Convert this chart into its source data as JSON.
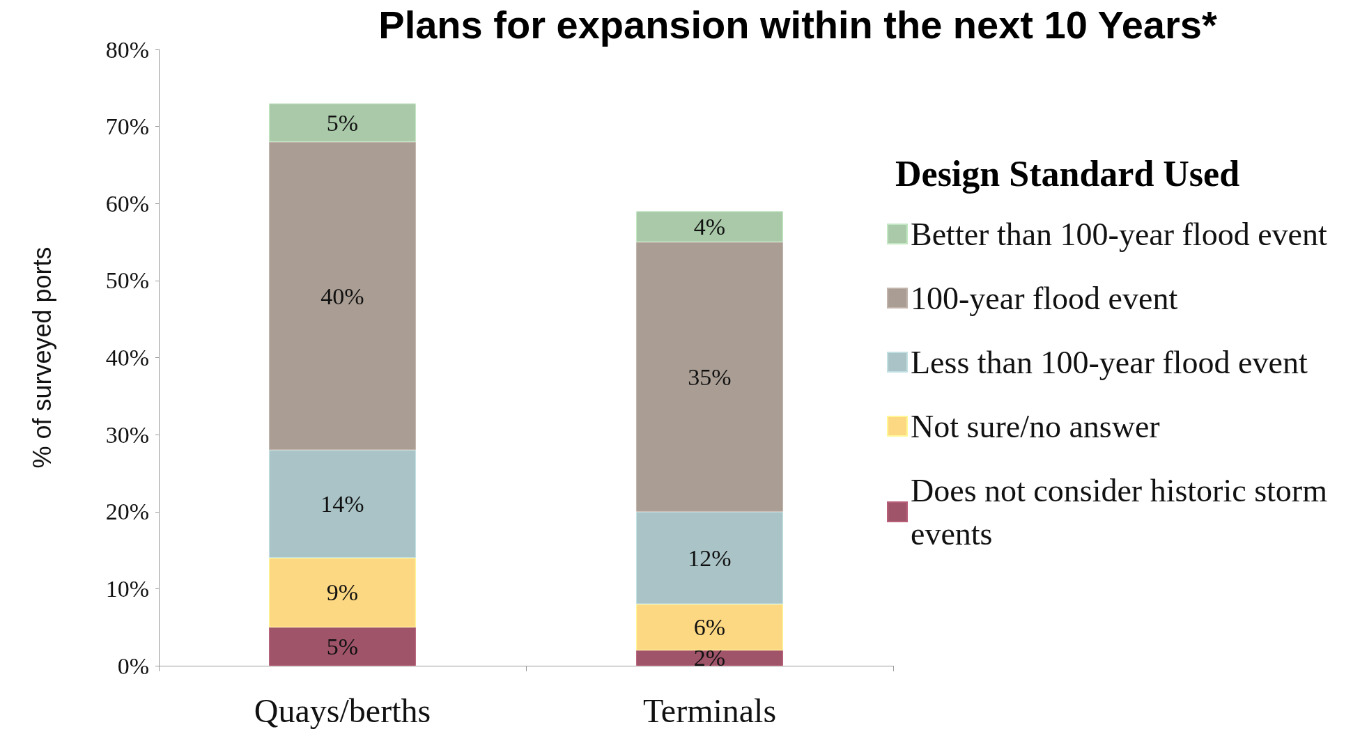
{
  "chart_data": {
    "type": "bar",
    "title": "Plans for expansion within the next 10 Years*",
    "ylabel": "% of surveyed ports",
    "legend_title": "Design Standard Used",
    "categories": [
      "Quays/berths",
      "Terminals"
    ],
    "stacked": true,
    "legend": "right",
    "grid": false,
    "ylim": [
      0,
      80
    ],
    "yticks": [
      {
        "value": 0,
        "label": "0%"
      },
      {
        "value": 10,
        "label": "10%"
      },
      {
        "value": 20,
        "label": "20%"
      },
      {
        "value": 30,
        "label": "30%"
      },
      {
        "value": 40,
        "label": "40%"
      },
      {
        "value": 50,
        "label": "50%"
      },
      {
        "value": 60,
        "label": "60%"
      },
      {
        "value": 70,
        "label": "70%"
      },
      {
        "value": 80,
        "label": "80%"
      }
    ],
    "series": [
      {
        "name": "Does not consider historic storm events",
        "color": "#a0546a",
        "values": [
          5,
          2
        ],
        "value_labels": [
          "5%",
          "2%"
        ]
      },
      {
        "name": "Not sure/no answer",
        "color": "#fdd882",
        "values": [
          9,
          6
        ],
        "value_labels": [
          "9%",
          "6%"
        ]
      },
      {
        "name": "Less than 100-year flood event",
        "color": "#a9c3c6",
        "values": [
          14,
          12
        ],
        "value_labels": [
          "14%",
          "12%"
        ]
      },
      {
        "name": "100-year flood event",
        "color": "#a99d94",
        "values": [
          40,
          35
        ],
        "value_labels": [
          "40%",
          "35%"
        ]
      },
      {
        "name": "Better than 100-year flood event",
        "color": "#a9c9a9",
        "values": [
          5,
          4
        ],
        "value_labels": [
          "5%",
          "4%"
        ]
      }
    ]
  }
}
